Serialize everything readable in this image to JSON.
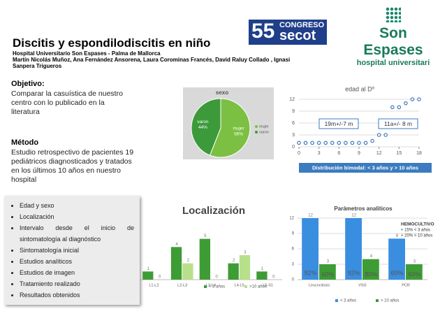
{
  "header": {
    "title": "Discitis y espondilodiscitis en niño",
    "institution": "Hospital Universitario Son Espases - Palma de Mallorca",
    "authors": "Martín Nicolás Muñoz, Ana Fernández Ansorena, Laura Corominas Francés, David Raluy Collado , Ignasi Sanpera Trigueros"
  },
  "logos": {
    "congress_number": "55",
    "congress_word": "CONGRESO",
    "congress_name": "secot",
    "hospital_name": "Son Espases",
    "hospital_sub": "hospital universitari"
  },
  "objetivo": {
    "heading": "Objetivo",
    "colon": ":",
    "text": "Comparar la casuística de nuestro centro con lo publicado en la literatura"
  },
  "metodo": {
    "heading": "Método",
    "text": "Estudio retrospectivo de pacientes 19 pediátricos diagnosticados y tratados en los últimos 10 años en nuestro hospital"
  },
  "list": [
    "Edad y sexo",
    "Localización",
    "Intervalo desde el inicio de sintomatología al diagnóstico",
    "Sintomatología inicial",
    "Estudios analíticos",
    "Estudios de imagen",
    "Tratamiento realizado",
    "Resultados obtenidos"
  ],
  "chart_data": [
    {
      "type": "pie",
      "title": "sexo",
      "categories": [
        "mujer",
        "varon"
      ],
      "values": [
        56,
        44
      ],
      "value_labels": [
        "56%",
        "44%"
      ],
      "colors": [
        "#7cc043",
        "#3d9a3b"
      ],
      "legend": "right"
    },
    {
      "type": "scatter",
      "title": "edad al Dº",
      "x": [
        0,
        1,
        2,
        3,
        4,
        5,
        6,
        7,
        8,
        9,
        10,
        11,
        12,
        13,
        14,
        15,
        16,
        17,
        18
      ],
      "values": [
        1,
        1,
        1,
        1,
        1,
        1,
        1,
        1,
        1,
        1,
        1,
        1.5,
        3,
        3,
        10,
        10,
        11,
        12,
        12
      ],
      "color": "#3b7bbf",
      "xlim": [
        0,
        18
      ],
      "xticks": [
        0,
        3,
        6,
        9,
        12,
        15,
        18
      ],
      "ylim": [
        0,
        12
      ],
      "yticks": [
        0,
        3,
        6,
        9,
        12
      ],
      "grid": true,
      "annotations": [
        "19m+/-7 m",
        "11a+/- 8 m"
      ],
      "note": "Distribución bimodal: < 3 años y > 10 años"
    },
    {
      "type": "bar",
      "title": "Localización",
      "categories": [
        "L1-L2",
        "L2-L3",
        "L3-L4",
        "L4-L5",
        "L5-S1"
      ],
      "ylim": [
        0,
        6
      ],
      "grid": true,
      "legend": "bottom",
      "series": [
        {
          "name": "< 3 años",
          "color": "#3e9c35",
          "values": [
            1,
            4,
            5,
            2,
            1
          ]
        },
        {
          "name": ">10 años",
          "color": "#b8e08a",
          "values": [
            0,
            2,
            0,
            3,
            0
          ]
        }
      ]
    },
    {
      "type": "bar",
      "title": "Parámetros analíticos",
      "categories": [
        "Leucocitosis",
        "VSG",
        "PCR"
      ],
      "ylim": [
        0,
        12
      ],
      "yticks": [
        0,
        3,
        6,
        9,
        12
      ],
      "grid": true,
      "legend": "bottom",
      "series": [
        {
          "name": "< 3 años",
          "color": "#3a8ee0",
          "values": [
            12,
            12,
            8
          ]
        },
        {
          "name": "> 10 años",
          "color": "#3e9c35",
          "values": [
            3,
            4,
            3
          ]
        }
      ],
      "annotations": [
        "92%",
        "60%",
        "92%",
        "80%",
        "60%",
        "60%"
      ],
      "box": [
        "HEMOCULTIVO",
        "+ 15% < 3 años",
        "+ 20% > 10 años"
      ]
    }
  ]
}
